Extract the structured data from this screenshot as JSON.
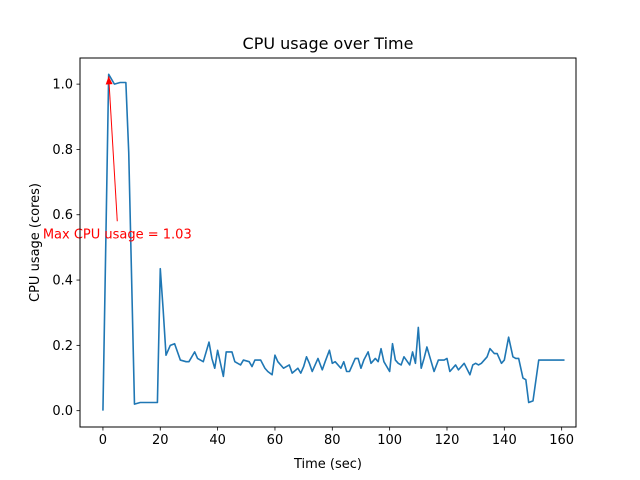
{
  "chart_data": {
    "type": "line",
    "title": "CPU usage over Time",
    "xlabel": "Time (sec)",
    "ylabel": "CPU usage (cores)",
    "xlim": [
      -8,
      165
    ],
    "ylim": [
      -0.05,
      1.08
    ],
    "xticks": [
      0,
      20,
      40,
      60,
      80,
      100,
      120,
      140,
      160
    ],
    "yticks": [
      0.0,
      0.2,
      0.4,
      0.6,
      0.8,
      1.0
    ],
    "ytick_labels": [
      "0.0",
      "0.2",
      "0.4",
      "0.6",
      "0.8",
      "1.0"
    ],
    "grid": false,
    "series": [
      {
        "color": "#1f77b4",
        "x": [
          0,
          2,
          4,
          6,
          8,
          9,
          11,
          13,
          15,
          17,
          19,
          20,
          21,
          22,
          23.5,
          25,
          27,
          29,
          30,
          32,
          33,
          35,
          37,
          38,
          39,
          40,
          42,
          43,
          45,
          46,
          48,
          49,
          51,
          52,
          53,
          55,
          56.5,
          57.5,
          59,
          60,
          61,
          63,
          64,
          65,
          66,
          68,
          69,
          70,
          71,
          72,
          73,
          75,
          76.5,
          77.5,
          79,
          80,
          81,
          83,
          84,
          85,
          86,
          88,
          89,
          90,
          91,
          92.5,
          93.5,
          95,
          96,
          97,
          98,
          100,
          101,
          102,
          103,
          104,
          105,
          107,
          108,
          109,
          110,
          111,
          112,
          113,
          114,
          115.5,
          117,
          119,
          120,
          121,
          123,
          124,
          126,
          128,
          129,
          130,
          131,
          132,
          134,
          135,
          136.5,
          137.5,
          139,
          140,
          141.5,
          143,
          144,
          145,
          146.5,
          147.5,
          148.5,
          150,
          152,
          153,
          155,
          156,
          157,
          158,
          159,
          160,
          161
        ],
        "y": [
          0.0,
          1.03,
          1.0,
          1.005,
          1.005,
          0.79,
          0.02,
          0.025,
          0.025,
          0.025,
          0.025,
          0.435,
          0.31,
          0.17,
          0.2,
          0.205,
          0.155,
          0.15,
          0.15,
          0.18,
          0.16,
          0.15,
          0.21,
          0.16,
          0.13,
          0.185,
          0.105,
          0.18,
          0.18,
          0.15,
          0.14,
          0.155,
          0.15,
          0.135,
          0.155,
          0.155,
          0.13,
          0.12,
          0.11,
          0.17,
          0.15,
          0.13,
          0.135,
          0.14,
          0.115,
          0.13,
          0.115,
          0.135,
          0.165,
          0.145,
          0.12,
          0.16,
          0.125,
          0.15,
          0.185,
          0.145,
          0.15,
          0.13,
          0.15,
          0.12,
          0.12,
          0.16,
          0.16,
          0.13,
          0.155,
          0.18,
          0.145,
          0.16,
          0.15,
          0.19,
          0.15,
          0.12,
          0.205,
          0.155,
          0.145,
          0.14,
          0.165,
          0.14,
          0.18,
          0.145,
          0.255,
          0.13,
          0.16,
          0.195,
          0.165,
          0.12,
          0.155,
          0.155,
          0.16,
          0.12,
          0.14,
          0.125,
          0.145,
          0.11,
          0.14,
          0.145,
          0.14,
          0.145,
          0.165,
          0.19,
          0.175,
          0.175,
          0.145,
          0.155,
          0.225,
          0.165,
          0.16,
          0.16,
          0.1,
          0.095,
          0.025,
          0.03,
          0.155,
          0.155,
          0.155,
          0.155,
          0.155,
          0.155,
          0.155,
          0.155,
          0.155
        ]
      }
    ],
    "annotation": {
      "text": "Max CPU usage = 1.03",
      "color": "#ff0000",
      "xy": [
        2,
        1.03
      ],
      "xytext": [
        5,
        0.58
      ]
    }
  }
}
